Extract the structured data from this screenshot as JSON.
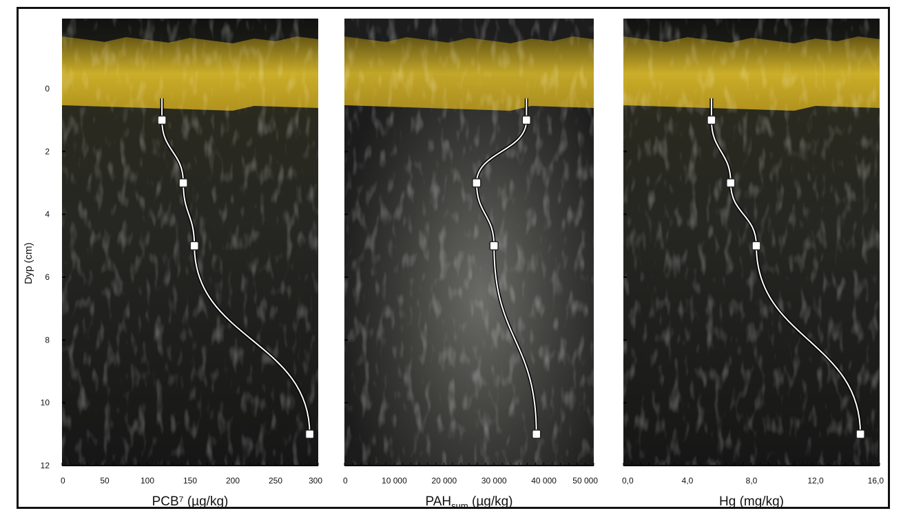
{
  "chart_data": [
    {
      "type": "line",
      "panel": "pcb",
      "xlabel": "PCB⁷ (µg/kg)",
      "ylabel": "Dyp (cm)",
      "xlim": [
        0,
        300
      ],
      "ylim": [
        12,
        0
      ],
      "xticks": [
        "0",
        "50",
        "100",
        "150",
        "200",
        "250",
        "300"
      ],
      "xtick_values": [
        0,
        50,
        100,
        150,
        200,
        250,
        300
      ],
      "yticks": [
        "0",
        "2",
        "4",
        "6",
        "8",
        "10",
        "12"
      ],
      "ytick_values": [
        0,
        2,
        4,
        6,
        8,
        10,
        12
      ],
      "series": [
        {
          "x": [
            117,
            142,
            155,
            290
          ],
          "y": [
            1,
            3,
            5,
            11
          ]
        }
      ]
    },
    {
      "type": "line",
      "panel": "pah",
      "xlabel": "PAH",
      "xlabel_sub": "sum",
      "xlabel_unit": " (µg/kg)",
      "xlim": [
        0,
        50000
      ],
      "ylim": [
        12,
        0
      ],
      "xticks": [
        "0",
        "10 000",
        "20 000",
        "30 000",
        "40 000",
        "50 000"
      ],
      "xtick_values": [
        0,
        10000,
        20000,
        30000,
        40000,
        50000
      ],
      "series": [
        {
          "x": [
            36500,
            26500,
            30000,
            38500
          ],
          "y": [
            1,
            3,
            5,
            11
          ]
        }
      ]
    },
    {
      "type": "line",
      "panel": "hg",
      "xlabel": "Hg (mg/kg)",
      "xlim": [
        0,
        16
      ],
      "ylim": [
        12,
        0
      ],
      "xticks": [
        "0,0",
        "4,0",
        "8,0",
        "12,0",
        "16,0"
      ],
      "xtick_values": [
        0,
        4,
        8,
        12,
        16
      ],
      "series": [
        {
          "x": [
            5.5,
            6.7,
            8.3,
            14.8
          ],
          "y": [
            1,
            3,
            5,
            11
          ]
        }
      ]
    }
  ]
}
